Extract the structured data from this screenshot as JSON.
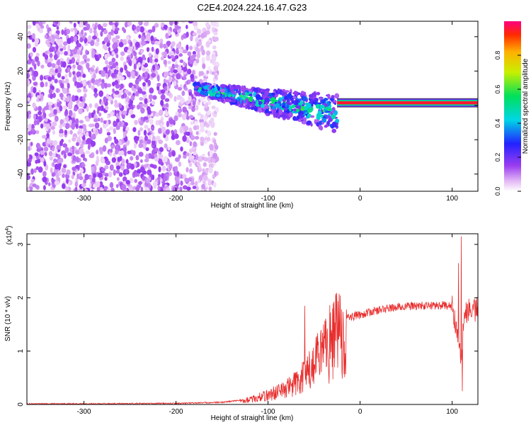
{
  "title": "C2E4.2024.224.16.47.G23",
  "chart_data": [
    {
      "type": "heatmap",
      "xlabel": "Height of straight line (km)",
      "ylabel": "Frequency (Hz)",
      "xlim": [
        -362,
        128
      ],
      "ylim": [
        -50,
        49
      ],
      "xticks": [
        -300,
        -200,
        -100,
        0,
        100
      ],
      "yticks": [
        -40,
        -20,
        0,
        20,
        40
      ],
      "colorbar": {
        "label": "Normalized spectral amplitude",
        "ticks": [
          0.0,
          0.2,
          0.4,
          0.6,
          0.8
        ],
        "tick_labels": [
          "0.0",
          "0.2",
          "0.4",
          "0.6",
          "0.8"
        ],
        "range": [
          0,
          1
        ]
      },
      "regions": [
        {
          "name": "noise",
          "x_range": [
            -362,
            -155
          ],
          "freq_range": [
            -50,
            49
          ],
          "amplitude": 0.12
        },
        {
          "name": "transition",
          "x_range": [
            -180,
            -25
          ],
          "freq_start": 10,
          "freq_end": -5,
          "amplitude": 0.55
        },
        {
          "name": "steady-line",
          "x_range": [
            -25,
            128
          ],
          "freq": 1.5,
          "amplitude": 0.95
        }
      ]
    },
    {
      "type": "line",
      "xlabel": "Height of straight line (km)",
      "ylabel": "SNR (10 * v/v)",
      "multiplier_label": "(x10",
      "multiplier_exponent": "4",
      "xlim": [
        -362,
        128
      ],
      "ylim": [
        0,
        3.2
      ],
      "xticks": [
        -300,
        -200,
        -100,
        0,
        100
      ],
      "yticks": [
        0,
        1,
        2,
        3
      ],
      "color": "#e82c2c",
      "envelope": [
        [
          -362,
          0.01
        ],
        [
          -200,
          0.02
        ],
        [
          -150,
          0.04
        ],
        [
          -120,
          0.1
        ],
        [
          -100,
          0.2
        ],
        [
          -85,
          0.3
        ],
        [
          -70,
          0.45
        ],
        [
          -55,
          0.7
        ],
        [
          -45,
          0.95
        ],
        [
          -35,
          1.25
        ],
        [
          -25,
          1.55
        ],
        [
          -15,
          1.62
        ],
        [
          0,
          1.68
        ],
        [
          15,
          1.75
        ],
        [
          30,
          1.8
        ],
        [
          50,
          1.84
        ],
        [
          70,
          1.85
        ],
        [
          90,
          1.86
        ],
        [
          100,
          1.83
        ],
        [
          106,
          1.4
        ],
        [
          110,
          0.9
        ],
        [
          114,
          1.75
        ],
        [
          118,
          1.8
        ],
        [
          128,
          1.78
        ]
      ],
      "peaks": [
        [
          -25,
          1.75
        ],
        [
          -15,
          1.78
        ],
        [
          -60,
          1.85
        ],
        [
          -27,
          1.2
        ],
        [
          107,
          2.65
        ],
        [
          110,
          3.15
        ],
        [
          111,
          0.25
        ]
      ]
    }
  ]
}
